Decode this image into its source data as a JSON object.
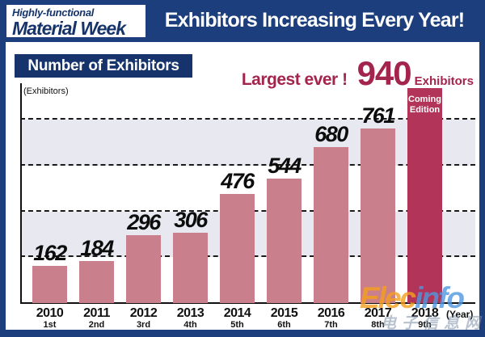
{
  "banner": {
    "logo_line1": "Highly-functional",
    "logo_line2": "Material Week",
    "title": "Exhibitors Increasing Every Year!"
  },
  "header": {
    "chart_title": "Number of Exhibitors",
    "largest_label": "Largest ever !",
    "largest_value": "940",
    "largest_unit": "Exhibitors"
  },
  "chart_data": {
    "type": "bar",
    "title": "Number of Exhibitors",
    "y_unit_label": "(Exhibitors)",
    "x_unit_label": "(Year)",
    "categories": [
      "2010",
      "2011",
      "2012",
      "2013",
      "2014",
      "2015",
      "2016",
      "2017",
      "2018"
    ],
    "edition_labels": [
      "1st",
      "2nd",
      "3rd",
      "4th",
      "5th",
      "6th",
      "7th",
      "8th",
      "9th"
    ],
    "values": [
      162,
      184,
      296,
      306,
      476,
      544,
      680,
      761,
      940
    ],
    "ylim": [
      0,
      960
    ],
    "gridline_step": 200,
    "grid": "dashed-horizontal",
    "legend": "none",
    "bar_color": "#c9808c",
    "highlight_index": 8,
    "highlight_bar_color": "#b23458",
    "highlight_bar_label": "Coming Edition"
  },
  "watermark": {
    "part_orange": "Elec",
    "part_blue": "info",
    "cn_text": "电子信息网"
  },
  "colors": {
    "navy": "#1d3e7d",
    "navy_dark": "#16346b",
    "crimson_text": "#a3244d",
    "band_gray": "#e8e9f0"
  }
}
